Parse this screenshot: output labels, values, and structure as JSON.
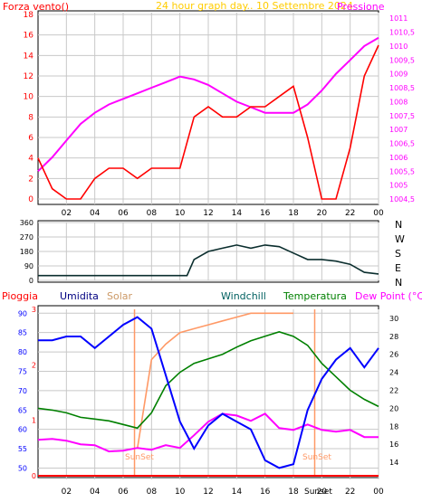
{
  "colors": {
    "frame": "#000000",
    "grid": "#c8c8c8",
    "wind_speed": "#ff0000",
    "wind_gust": "#ff0000",
    "wind_dir": "#0b2e2e",
    "pressure": "#ff00ff",
    "rain": "#ff0000",
    "humidity": "#0000ff",
    "solar": "#ff9966",
    "windchill": "#006060",
    "temperature": "#008000",
    "dewpoint": "#ff00ff",
    "sun_label": "#ff9966",
    "title": "#ffcc00"
  },
  "top": {
    "title": "24 hour graph day.. 10 Settembre 2024",
    "left_label": "Forza vento()",
    "right_label": "Pressione",
    "y_left_ticks": [
      "18",
      "16",
      "14",
      "12",
      "10",
      "8",
      "6",
      "4",
      "2",
      "0"
    ],
    "y_right_ticks": [
      "1011",
      "1010,5",
      "1010",
      "1009,5",
      "1009",
      "1008,5",
      "1008",
      "1007,5",
      "1007",
      "1006,5",
      "1006",
      "1005,5",
      "1005",
      "1004,5"
    ]
  },
  "middle": {
    "y_ticks": [
      "360",
      "270",
      "180",
      "90",
      "0"
    ],
    "compass": [
      "N",
      "W",
      "S",
      "E",
      "N"
    ]
  },
  "bottom": {
    "legend": {
      "rain": "Pioggia",
      "humidity": "Umidita",
      "solar": "Solar",
      "windchill": "Windchill",
      "temperature": "Temperatura",
      "dewpoint": "Dew Point (°C)"
    },
    "y_left_ticks": [
      "90",
      "85",
      "80",
      "75",
      "70",
      "65",
      "60",
      "55",
      "50"
    ],
    "y_rain_ticks": [
      "3",
      "2",
      "1",
      "0"
    ],
    "y_right_ticks": [
      "30",
      "28",
      "26",
      "24",
      "22",
      "20",
      "18",
      "16",
      "14"
    ],
    "sunrise_label": "SunSet",
    "sunset_label": "SunSet",
    "x_extra_label": "Sunset"
  },
  "x_ticks": [
    "02",
    "04",
    "06",
    "08",
    "10",
    "12",
    "14",
    "16",
    "18",
    "20",
    "22",
    "00"
  ],
  "chart_data": [
    {
      "type": "line",
      "title": "24 hour graph day.. 10 Settembre 2024",
      "x_hours": [
        0,
        1,
        2,
        3,
        4,
        5,
        6,
        7,
        8,
        9,
        10,
        11,
        12,
        13,
        14,
        15,
        16,
        17,
        18,
        19,
        20,
        21,
        22,
        23,
        24
      ],
      "series": [
        {
          "name": "Forza vento()",
          "axis": "left",
          "ylim": [
            0,
            18
          ],
          "values": [
            4,
            1,
            0,
            0,
            2,
            3,
            3,
            2,
            3,
            3,
            3,
            8,
            9,
            8,
            8,
            9,
            9,
            10,
            11,
            6,
            0,
            0,
            5,
            12,
            15
          ]
        },
        {
          "name": "Pressione",
          "axis": "right",
          "ylim": [
            1004.5,
            1011.2
          ],
          "values": [
            1005.5,
            1006.0,
            1006.6,
            1007.2,
            1007.6,
            1007.9,
            1008.1,
            1008.3,
            1008.5,
            1008.7,
            1008.9,
            1008.8,
            1008.6,
            1008.3,
            1008.0,
            1007.8,
            1007.6,
            1007.6,
            1007.6,
            1007.9,
            1008.4,
            1009.0,
            1009.5,
            1010.0,
            1010.3
          ]
        }
      ]
    },
    {
      "type": "line",
      "x_hours": [
        0,
        10.5,
        11,
        12,
        13,
        14,
        15,
        16,
        17,
        18,
        19,
        20,
        21,
        22,
        23,
        24
      ],
      "series": [
        {
          "name": "wind direction",
          "ylim": [
            0,
            360
          ],
          "values": [
            30,
            30,
            130,
            180,
            200,
            220,
            200,
            220,
            210,
            170,
            130,
            130,
            120,
            100,
            50,
            40
          ]
        }
      ]
    },
    {
      "type": "line",
      "x_hours": [
        0,
        1,
        2,
        3,
        4,
        5,
        6,
        7,
        8,
        9,
        10,
        11,
        12,
        13,
        14,
        15,
        16,
        17,
        18,
        19,
        20,
        21,
        22,
        23,
        24
      ],
      "series": [
        {
          "name": "Umidita",
          "axis": "left",
          "ylim": [
            48,
            91
          ],
          "values": [
            83,
            83,
            84,
            84,
            81,
            84,
            87,
            89,
            86,
            74,
            62,
            55,
            61,
            64,
            62,
            60,
            52,
            50,
            51,
            65,
            73,
            78,
            81,
            76,
            81
          ]
        },
        {
          "name": "Solar",
          "axis": "left",
          "ylim": [
            48,
            91
          ],
          "values": [
            null,
            null,
            null,
            null,
            null,
            null,
            null,
            55,
            78,
            82,
            85,
            86,
            87,
            88,
            89,
            90,
            90,
            90,
            90,
            null,
            null,
            null,
            null,
            null,
            null
          ]
        },
        {
          "name": "Temperatura",
          "axis": "right",
          "ylim": [
            12.5,
            31
          ],
          "values": [
            20,
            19.8,
            19.5,
            19.0,
            18.8,
            18.6,
            18.2,
            17.8,
            19.5,
            22.5,
            24.0,
            25.0,
            25.5,
            26.0,
            26.8,
            27.5,
            28.0,
            28.5,
            28.0,
            27.0,
            25.0,
            23.5,
            22.0,
            21.0,
            20.2
          ]
        },
        {
          "name": "Dew Point (°C)",
          "axis": "right",
          "ylim": [
            12.5,
            31
          ],
          "values": [
            16.5,
            16.6,
            16.4,
            16.0,
            15.9,
            15.2,
            15.3,
            15.6,
            15.4,
            15.9,
            15.6,
            17.0,
            18.5,
            19.4,
            19.2,
            18.6,
            19.4,
            17.8,
            17.6,
            18.2,
            17.6,
            17.4,
            17.6,
            16.8,
            16.8
          ]
        },
        {
          "name": "Pioggia",
          "axis": "rain",
          "ylim": [
            0,
            3
          ],
          "values": [
            0,
            0,
            0,
            0,
            0,
            0,
            0,
            0,
            0,
            0,
            0,
            0,
            0,
            0,
            0,
            0,
            0,
            0,
            0,
            0,
            0,
            0,
            0,
            0,
            0
          ]
        }
      ]
    }
  ]
}
